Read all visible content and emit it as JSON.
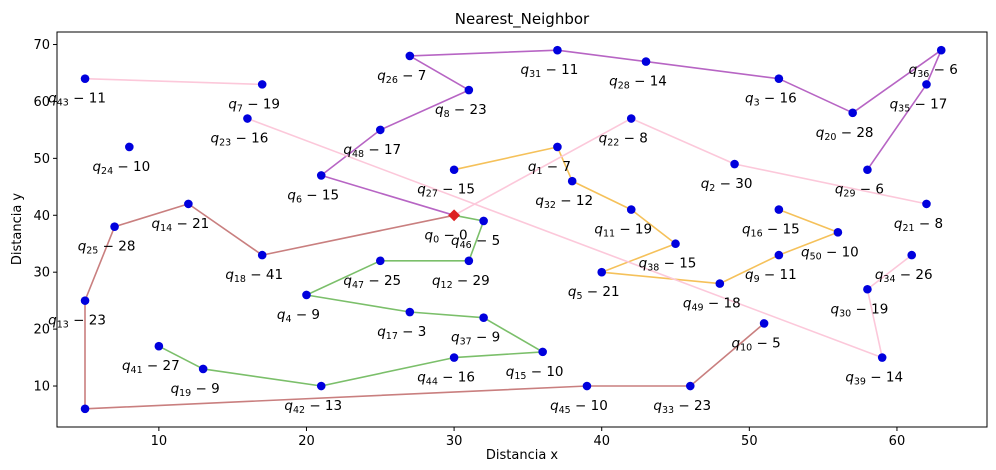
{
  "chart_data": {
    "type": "scatter",
    "title": "Nearest_Neighbor",
    "xlabel": "Distancia x",
    "ylabel": "Distancia y",
    "xlim": [
      3.1,
      66.1
    ],
    "ylim": [
      2.8,
      72.2
    ],
    "xticks": [
      10,
      20,
      30,
      40,
      50,
      60
    ],
    "yticks": [
      10,
      20,
      30,
      40,
      50,
      60,
      70
    ],
    "grid": false,
    "depot": {
      "label": "q_0 - 0",
      "sub": "0",
      "demand": "0",
      "x": 30,
      "y": 40,
      "color": "#dd2222"
    },
    "customers": [
      {
        "sub": "1",
        "demand": "7",
        "x": 37,
        "y": 52
      },
      {
        "sub": "2",
        "demand": "30",
        "x": 49,
        "y": 49
      },
      {
        "sub": "3",
        "demand": "16",
        "x": 52,
        "y": 64
      },
      {
        "sub": "4",
        "demand": "9",
        "x": 20,
        "y": 26
      },
      {
        "sub": "5",
        "demand": "21",
        "x": 40,
        "y": 30
      },
      {
        "sub": "6",
        "demand": "15",
        "x": 21,
        "y": 47
      },
      {
        "sub": "7",
        "demand": "19",
        "x": 17,
        "y": 63
      },
      {
        "sub": "8",
        "demand": "23",
        "x": 31,
        "y": 62
      },
      {
        "sub": "9",
        "demand": "11",
        "x": 52,
        "y": 33
      },
      {
        "sub": "10",
        "demand": "5",
        "x": 51,
        "y": 21
      },
      {
        "sub": "11",
        "demand": "19",
        "x": 42,
        "y": 41
      },
      {
        "sub": "12",
        "demand": "29",
        "x": 31,
        "y": 32
      },
      {
        "sub": "13",
        "demand": "23",
        "x": 5,
        "y": 25
      },
      {
        "sub": "14",
        "demand": "21",
        "x": 12,
        "y": 42
      },
      {
        "sub": "15",
        "demand": "10",
        "x": 36,
        "y": 16
      },
      {
        "sub": "16",
        "demand": "15",
        "x": 52,
        "y": 41
      },
      {
        "sub": "17",
        "demand": "3",
        "x": 27,
        "y": 23
      },
      {
        "sub": "18",
        "demand": "41",
        "x": 17,
        "y": 33
      },
      {
        "sub": "19",
        "demand": "9",
        "x": 13,
        "y": 13
      },
      {
        "sub": "20",
        "demand": "28",
        "x": 57,
        "y": 58
      },
      {
        "sub": "21",
        "demand": "8",
        "x": 62,
        "y": 42
      },
      {
        "sub": "22",
        "demand": "8",
        "x": 42,
        "y": 57
      },
      {
        "sub": "23",
        "demand": "16",
        "x": 16,
        "y": 57
      },
      {
        "sub": "24",
        "demand": "10",
        "x": 8,
        "y": 52
      },
      {
        "sub": "25",
        "demand": "28",
        "x": 7,
        "y": 38
      },
      {
        "sub": "26",
        "demand": "7",
        "x": 27,
        "y": 68
      },
      {
        "sub": "27",
        "demand": "15",
        "x": 30,
        "y": 48
      },
      {
        "sub": "28",
        "demand": "14",
        "x": 43,
        "y": 67
      },
      {
        "sub": "29",
        "demand": "6",
        "x": 58,
        "y": 48
      },
      {
        "sub": "30",
        "demand": "19",
        "x": 58,
        "y": 27
      },
      {
        "sub": "31",
        "demand": "11",
        "x": 37,
        "y": 69
      },
      {
        "sub": "32",
        "demand": "12",
        "x": 38,
        "y": 46
      },
      {
        "sub": "33",
        "demand": "23",
        "x": 46,
        "y": 10
      },
      {
        "sub": "34",
        "demand": "26",
        "x": 61,
        "y": 33
      },
      {
        "sub": "35",
        "demand": "17",
        "x": 62,
        "y": 63
      },
      {
        "sub": "36",
        "demand": "6",
        "x": 63,
        "y": 69
      },
      {
        "sub": "37",
        "demand": "9",
        "x": 32,
        "y": 22
      },
      {
        "sub": "38",
        "demand": "15",
        "x": 45,
        "y": 35
      },
      {
        "sub": "39",
        "demand": "14",
        "x": 59,
        "y": 15
      },
      {
        "sub": "41",
        "demand": "27",
        "x": 10,
        "y": 17
      },
      {
        "sub": "42",
        "demand": "13",
        "x": 21,
        "y": 10
      },
      {
        "sub": "43",
        "demand": "11",
        "x": 5,
        "y": 64
      },
      {
        "sub": "44",
        "demand": "16",
        "x": 30,
        "y": 15
      },
      {
        "sub": "45",
        "demand": "10",
        "x": 39,
        "y": 10
      },
      {
        "sub": "46",
        "demand": "5",
        "x": 32,
        "y": 39
      },
      {
        "sub": "47",
        "demand": "25",
        "x": 25,
        "y": 32
      },
      {
        "sub": "48",
        "demand": "17",
        "x": 25,
        "y": 55
      },
      {
        "sub": "49",
        "demand": "18",
        "x": 48,
        "y": 28
      },
      {
        "sub": "50",
        "demand": "10",
        "x": 56,
        "y": 37
      }
    ],
    "routes": [
      {
        "color": "#b765c4",
        "path": [
          [
            30,
            40
          ],
          [
            21,
            47
          ],
          [
            25,
            55
          ],
          [
            31,
            62
          ],
          [
            27,
            68
          ],
          [
            37,
            69
          ],
          [
            43,
            67
          ],
          [
            52,
            64
          ],
          [
            57,
            58
          ],
          [
            63,
            69
          ],
          [
            62,
            63
          ],
          [
            58,
            48
          ]
        ]
      },
      {
        "color": "#f5c15a",
        "path": [
          [
            30,
            48
          ],
          [
            37,
            52
          ],
          [
            38,
            46
          ],
          [
            42,
            41
          ],
          [
            45,
            35
          ],
          [
            40,
            30
          ],
          [
            48,
            28
          ],
          [
            52,
            33
          ],
          [
            56,
            37
          ],
          [
            52,
            41
          ]
        ]
      },
      {
        "color": "#7bbf6a",
        "path": [
          [
            30,
            40
          ],
          [
            32,
            39
          ],
          [
            31,
            32
          ],
          [
            25,
            32
          ],
          [
            20,
            26
          ],
          [
            27,
            23
          ],
          [
            32,
            22
          ],
          [
            36,
            16
          ],
          [
            30,
            15
          ],
          [
            21,
            10
          ],
          [
            13,
            13
          ],
          [
            10,
            17
          ]
        ]
      },
      {
        "color": "#c97f7f",
        "path": [
          [
            30,
            40
          ],
          [
            17,
            33
          ],
          [
            12,
            42
          ],
          [
            7,
            38
          ],
          [
            5,
            25
          ],
          [
            5,
            6
          ],
          [
            39,
            10
          ],
          [
            46,
            10
          ],
          [
            51,
            21
          ]
        ]
      },
      {
        "color": "#fcc8da",
        "path": [
          [
            5,
            64
          ],
          [
            17,
            63
          ]
        ]
      },
      {
        "color": "#fcc8da",
        "path": [
          [
            30,
            40
          ],
          [
            42,
            57
          ],
          [
            49,
            49
          ],
          [
            62,
            42
          ]
        ]
      },
      {
        "color": "#fcc8da",
        "path": [
          [
            16,
            57
          ],
          [
            59,
            15
          ],
          [
            58,
            27
          ],
          [
            61,
            33
          ]
        ]
      }
    ],
    "extra_points": [
      {
        "x": 5,
        "y": 6
      }
    ]
  }
}
